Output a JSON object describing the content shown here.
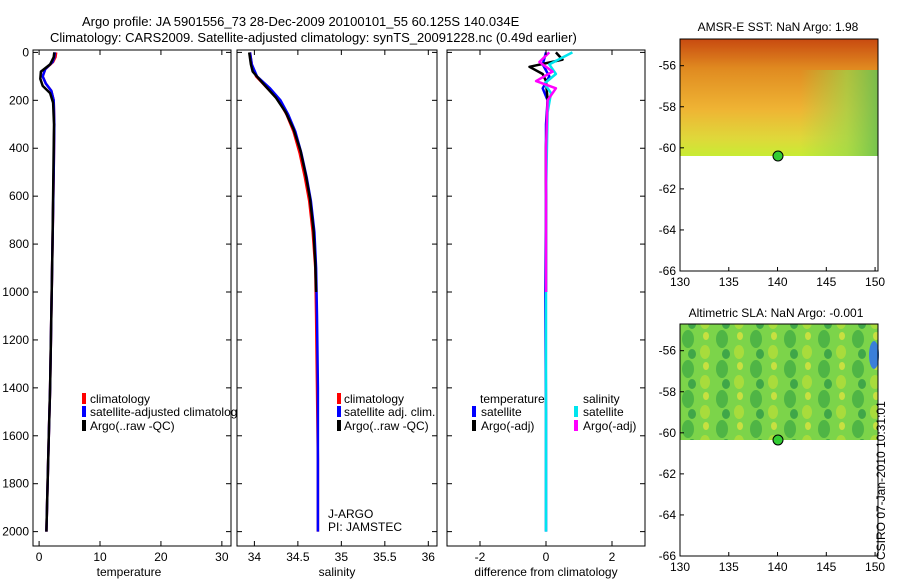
{
  "title_line1": "Argo profile: JA 5901556_73 28-Dec-2009 20100101_55 60.125S 140.034E",
  "title_line2": "Climatology: CARS2009. Satellite-adjusted climatology: synTS_20091228.nc (0.49d earlier)",
  "footer_stamp": "CSIRO 07-Jan-2010 10:31:01",
  "colors": {
    "red": "#ff0000",
    "blue": "#0000ff",
    "black": "#000000",
    "cyan": "#00e5ee",
    "magenta": "#ff00ff",
    "marker": "#33cc33"
  },
  "chart_data": [
    {
      "type": "line",
      "id": "temperature",
      "xlabel": "temperature",
      "ylabel": "",
      "xlim": [
        -1,
        31.5
      ],
      "ylim": [
        2060,
        -10
      ],
      "xticks": [
        0,
        10,
        20,
        30
      ],
      "xtick_labels": [
        "0",
        "10",
        "20",
        "30"
      ],
      "yticks": [
        0,
        200,
        400,
        600,
        800,
        1000,
        1200,
        1400,
        1600,
        1800,
        2000
      ],
      "ytick_labels": [
        "0",
        "200",
        "400",
        "600",
        "800",
        "1000",
        "1200",
        "1400",
        "1600",
        "1800",
        "2000"
      ],
      "series": [
        {
          "name": "climatology",
          "color": "#ff0000",
          "x": [
            2.8,
            2.7,
            2.3,
            1.0,
            0.6,
            1.1,
            2.0,
            2.4,
            2.5,
            2.4,
            2.2,
            2.0,
            1.8,
            1.6,
            1.4,
            1.2
          ],
          "y": [
            0,
            20,
            40,
            70,
            100,
            130,
            160,
            200,
            300,
            500,
            800,
            1100,
            1400,
            1600,
            1800,
            2000
          ]
        },
        {
          "name": "satellite-adjusted climatology",
          "color": "#0000ff",
          "x": [
            2.6,
            2.5,
            2.2,
            1.0,
            0.6,
            1.1,
            2.0,
            2.4,
            2.5,
            2.4,
            2.2,
            2.0,
            1.8,
            1.6,
            1.4,
            1.2
          ],
          "y": [
            0,
            20,
            40,
            70,
            100,
            130,
            160,
            200,
            300,
            500,
            800,
            1100,
            1400,
            1600,
            1800,
            2000
          ]
        },
        {
          "name": "Argo(..raw -QC)",
          "color": "#000000",
          "x": [
            2.5,
            2.4,
            1.8,
            0.3,
            0.2,
            0.6,
            1.8,
            2.3,
            2.45,
            2.35,
            2.2,
            2.0,
            1.8,
            1.6,
            1.4,
            1.2
          ],
          "y": [
            0,
            20,
            50,
            80,
            110,
            140,
            170,
            210,
            300,
            500,
            800,
            1100,
            1400,
            1600,
            1800,
            2000
          ]
        }
      ],
      "legend": [
        "climatology",
        "satellite-adjusted climatolog",
        "Argo(..raw -QC)"
      ]
    },
    {
      "type": "line",
      "id": "salinity",
      "xlabel": "salinity",
      "ylabel": "",
      "xlim": [
        33.8,
        36.1
      ],
      "ylim": [
        2060,
        -10
      ],
      "xticks": [
        34,
        34.5,
        35,
        35.5,
        36
      ],
      "xtick_labels": [
        "34",
        "34.5",
        "35",
        "35.5",
        "36"
      ],
      "series": [
        {
          "name": "climatology",
          "color": "#ff0000",
          "x": [
            33.95,
            33.97,
            34.02,
            34.15,
            34.28,
            34.37,
            34.45,
            34.52,
            34.58,
            34.63,
            34.67,
            34.7,
            34.71,
            34.72,
            34.73,
            34.73
          ],
          "y": [
            0,
            50,
            100,
            150,
            200,
            260,
            330,
            420,
            520,
            620,
            750,
            900,
            1100,
            1400,
            1700,
            2000
          ]
        },
        {
          "name": "satellite adj. clim.",
          "color": "#0000ff",
          "x": [
            33.95,
            33.97,
            34.03,
            34.18,
            34.3,
            34.39,
            34.47,
            34.54,
            34.6,
            34.65,
            34.69,
            34.71,
            34.72,
            34.73,
            34.73,
            34.73
          ],
          "y": [
            0,
            50,
            100,
            150,
            200,
            260,
            330,
            420,
            520,
            620,
            750,
            900,
            1100,
            1400,
            1700,
            2000
          ]
        },
        {
          "name": "Argo(..raw -QC)",
          "color": "#000000",
          "x": [
            33.94,
            33.96,
            33.98,
            34.1,
            34.25,
            34.36,
            34.45,
            34.53,
            34.59,
            34.64,
            34.68,
            34.7,
            34.71
          ],
          "y": [
            0,
            50,
            80,
            130,
            190,
            250,
            320,
            410,
            510,
            610,
            740,
            880,
            1000
          ]
        }
      ],
      "legend": [
        "climatology",
        "satellite adj. clim.",
        "Argo(..raw -QC)"
      ],
      "annotation": [
        "J-ARGO",
        "PI: JAMSTEC"
      ]
    },
    {
      "type": "line",
      "id": "difference",
      "xlabel": "difference from climatology",
      "ylabel": "",
      "xlim": [
        -3.0,
        3.0
      ],
      "ylim": [
        2060,
        -10
      ],
      "xticks": [
        -2,
        0,
        2
      ],
      "xtick_labels": [
        "-2",
        "0",
        "2"
      ],
      "series": [
        {
          "name": "temperature satellite",
          "color": "#0000ff",
          "x": [
            0.0,
            -0.1,
            0.1,
            -0.1,
            0.05,
            0.0,
            0.0,
            -0.02,
            0.0,
            0.0
          ],
          "y": [
            0,
            50,
            100,
            150,
            200,
            300,
            600,
            1000,
            1500,
            2000
          ]
        },
        {
          "name": "temperature Argo(-adj)",
          "color": "#000000",
          "x": [
            0.3,
            0.5,
            -0.5,
            -0.1,
            0.0,
            0.05,
            0.0,
            0.0
          ],
          "y": [
            0,
            30,
            60,
            90,
            120,
            200,
            400,
            1000
          ]
        },
        {
          "name": "salinity satellite",
          "color": "#00e5ee",
          "x": [
            0.8,
            0.1,
            0.3,
            -0.05,
            0.15,
            0.05,
            0.0,
            0.0
          ],
          "y": [
            0,
            50,
            90,
            130,
            170,
            250,
            600,
            2000
          ]
        },
        {
          "name": "salinity Argo(-adj)",
          "color": "#ff00ff",
          "x": [
            0.1,
            -0.2,
            0.2,
            -0.3,
            0.3,
            0.05,
            0.0,
            0.0
          ],
          "y": [
            0,
            40,
            80,
            120,
            150,
            200,
            400,
            1000
          ]
        }
      ],
      "legend_headers": [
        "temperature",
        "salinity"
      ],
      "legend": [
        "satellite",
        "Argo(-adj)",
        "satellite",
        "Argo(-adj)"
      ]
    },
    {
      "type": "heatmap",
      "id": "sst",
      "title": "AMSR-E SST: NaN Argo: 1.98",
      "xlim": [
        130,
        150.3
      ],
      "ylim": [
        -66,
        -54.7
      ],
      "xticks": [
        130,
        135,
        140,
        145,
        150
      ],
      "xtick_labels": [
        "130",
        "135",
        "140",
        "145",
        "150"
      ],
      "yticks": [
        -56,
        -58,
        -60,
        -62,
        -64,
        -66
      ],
      "ytick_labels": [
        "-56",
        "-58",
        "-60",
        "-62",
        "-64",
        "-66"
      ],
      "data_extent_lat": [
        -60,
        -54.7
      ],
      "argo_position": {
        "lon": 140.034,
        "lat": -60.125
      }
    },
    {
      "type": "heatmap",
      "id": "sla",
      "title": "Altimetric SLA: NaN Argo: -0.001",
      "xlim": [
        130,
        150.3
      ],
      "ylim": [
        -66,
        -54.7
      ],
      "xticks": [
        130,
        135,
        140,
        145,
        150
      ],
      "xtick_labels": [
        "130",
        "135",
        "140",
        "145",
        "150"
      ],
      "yticks": [
        -56,
        -58,
        -60,
        -62,
        -64,
        -66
      ],
      "ytick_labels": [
        "-56",
        "-58",
        "-60",
        "-62",
        "-64",
        "-66"
      ],
      "data_extent_lat": [
        -60,
        -54.7
      ],
      "argo_position": {
        "lon": 140.034,
        "lat": -60.125
      }
    }
  ]
}
